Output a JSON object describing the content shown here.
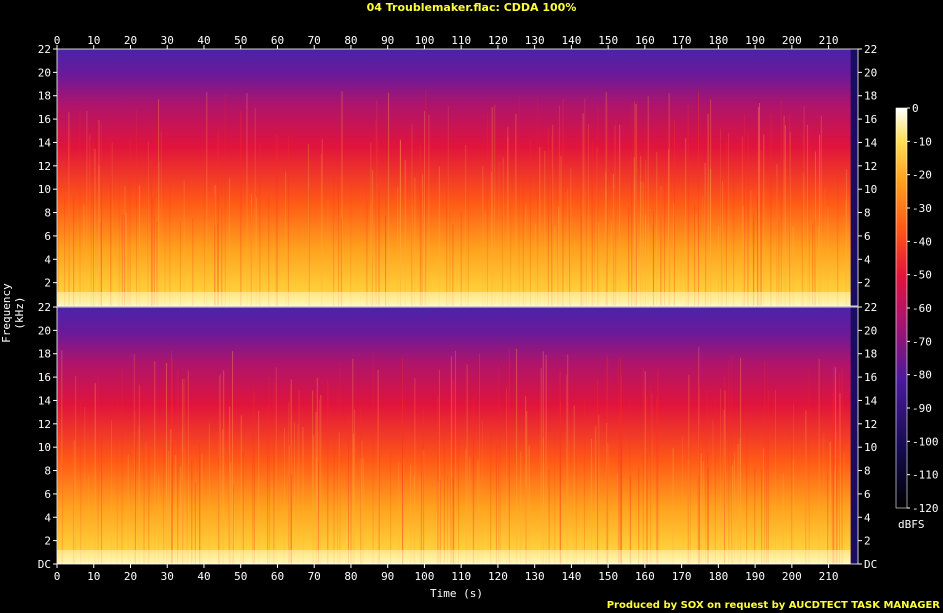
{
  "title": "04 Troublemaker.flac: CDDA 100%",
  "credit": "Produced by SOX on request by AUCDTECT TASK MANAGER",
  "chart_data": {
    "type": "heatmap",
    "title": "04 Troublemaker.flac: CDDA 100%",
    "xlabel": "Time (s)",
    "ylabel": "Frequency (kHz)",
    "colorbar_label": "dBFS",
    "channels": 2,
    "x_ticks": [
      0,
      10,
      20,
      30,
      40,
      50,
      60,
      70,
      80,
      90,
      100,
      110,
      120,
      130,
      140,
      150,
      160,
      170,
      180,
      190,
      200,
      210
    ],
    "y_ticks": [
      "DC",
      "2",
      "4",
      "6",
      "8",
      "10",
      "12",
      "14",
      "16",
      "18",
      "20",
      "22"
    ],
    "colorbar_ticks": [
      0,
      -10,
      -20,
      -30,
      -40,
      -50,
      -60,
      -70,
      -80,
      -90,
      -100,
      -110,
      -120
    ],
    "xlim": [
      0,
      218
    ],
    "ylim": [
      0,
      22
    ],
    "clim": [
      -120,
      0
    ],
    "colors": {
      "text_accent": "#ffff3a",
      "low": "#000000",
      "mid_low": "#3a1a8a",
      "mid": "#e0143c",
      "mid_high": "#ff7a10",
      "high": "#ffffe0"
    }
  }
}
